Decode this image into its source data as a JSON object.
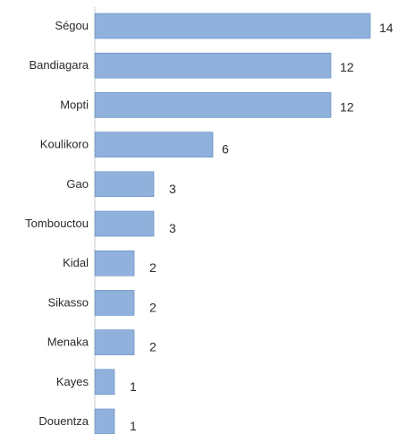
{
  "chart_data": {
    "type": "bar",
    "orientation": "horizontal",
    "categories": [
      "Ségou",
      "Bandiagara",
      "Mopti",
      "Koulikoro",
      "Gao",
      "Tombouctou",
      "Kidal",
      "Sikasso",
      "Menaka",
      "Kayes",
      "Douentza"
    ],
    "values": [
      14,
      12,
      12,
      6,
      3,
      3,
      2,
      2,
      2,
      1,
      1
    ],
    "value_labels": [
      "14",
      "12",
      "12",
      "6",
      "3",
      "3",
      "2",
      "2",
      "2",
      "1",
      "1"
    ],
    "xlim": [
      0,
      14
    ],
    "bar_color": "#8fb1dc",
    "bar_border_color": "#5f8cc4",
    "grid": false,
    "title": "",
    "xlabel": "",
    "ylabel": ""
  }
}
